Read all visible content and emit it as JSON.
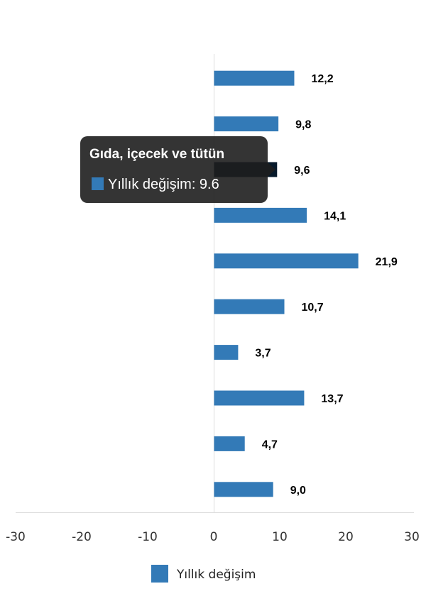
{
  "chart_data": {
    "type": "bar",
    "orientation": "horizontal",
    "series": [
      {
        "name": "Yıllık değişim",
        "values": [
          12.2,
          9.8,
          9.6,
          14.1,
          21.9,
          10.7,
          3.7,
          13.7,
          4.7,
          9.0
        ],
        "data_labels": [
          "12,2",
          "9,8",
          "9,6",
          "14,1",
          "21,9",
          "10,7",
          "3,7",
          "13,7",
          "4,7",
          "9,0"
        ]
      }
    ],
    "xlim": [
      -30,
      30
    ],
    "x_ticks": [
      "-30",
      "-20",
      "-10",
      "0",
      "10",
      "20",
      "30"
    ],
    "x_tick_values": [
      -30,
      -20,
      -10,
      0,
      10,
      20,
      30
    ],
    "grid": false,
    "legend": {
      "position": "bottom",
      "label": "Yıllık değişim"
    },
    "colors": {
      "bar": "#337ab7",
      "bar_hover": "#071a2b",
      "tooltip_bg": "#222222"
    },
    "tooltip": {
      "title": "Gıda, içecek ve tütün",
      "label": "Yıllık değişim: 9.6",
      "index": 2
    }
  }
}
